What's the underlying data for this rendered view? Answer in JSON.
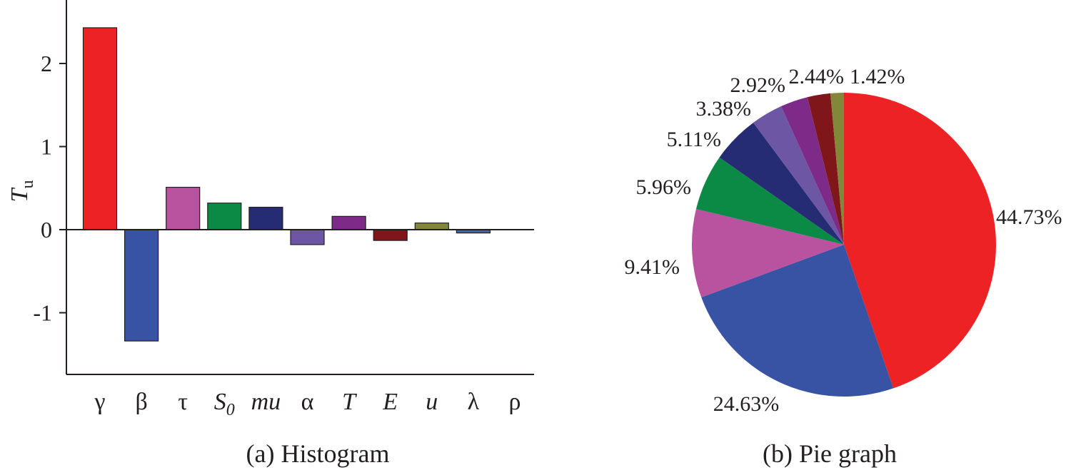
{
  "chart_data": [
    {
      "type": "bar",
      "caption": "(a) Histogram",
      "ylabel": "T",
      "ylabel_sub": "u",
      "ylim": [
        -1.8,
        2.8
      ],
      "yticks": [
        -1,
        0,
        1,
        2
      ],
      "ytick_labels": [
        "-1",
        "0",
        "1",
        "2"
      ],
      "categories": [
        {
          "label": "γ",
          "sub": "",
          "italic": false
        },
        {
          "label": "β",
          "sub": "",
          "italic": false
        },
        {
          "label": "τ",
          "sub": "",
          "italic": false
        },
        {
          "label": "S",
          "sub": "0",
          "italic": true
        },
        {
          "label": "mu",
          "sub": "",
          "italic": true
        },
        {
          "label": "α",
          "sub": "",
          "italic": false
        },
        {
          "label": "T",
          "sub": "",
          "italic": true
        },
        {
          "label": "E",
          "sub": "",
          "italic": true
        },
        {
          "label": "u",
          "sub": "",
          "italic": true
        },
        {
          "label": "λ",
          "sub": "",
          "italic": false
        },
        {
          "label": "ρ",
          "sub": "",
          "italic": false
        }
      ],
      "values": [
        2.43,
        -1.34,
        0.51,
        0.32,
        0.27,
        -0.18,
        0.16,
        -0.13,
        0.08,
        -0.04,
        0.0
      ],
      "colors": [
        "#ed2224",
        "#3953a4",
        "#b9529f",
        "#0b8a45",
        "#262c74",
        "#6d56a4",
        "#7e2a89",
        "#7f1619",
        "#82873a",
        "#3c67a6",
        "#ffffff"
      ]
    },
    {
      "type": "pie",
      "caption": "(b) Pie graph",
      "slices": [
        {
          "value": 44.73,
          "label": "44.73%",
          "color": "#ed2224"
        },
        {
          "value": 24.63,
          "label": "24.63%",
          "color": "#3953a4"
        },
        {
          "value": 9.41,
          "label": "9.41%",
          "color": "#b9529f"
        },
        {
          "value": 5.96,
          "label": "5.96%",
          "color": "#0b8a45"
        },
        {
          "value": 5.11,
          "label": "5.11%",
          "color": "#262c74"
        },
        {
          "value": 3.38,
          "label": "3.38%",
          "color": "#6d56a4"
        },
        {
          "value": 2.92,
          "label": "2.92%",
          "color": "#7e2a89"
        },
        {
          "value": 2.44,
          "label": "2.44%",
          "color": "#7f1619"
        },
        {
          "value": 1.42,
          "label": "1.42%",
          "color": "#82873a"
        }
      ]
    }
  ]
}
